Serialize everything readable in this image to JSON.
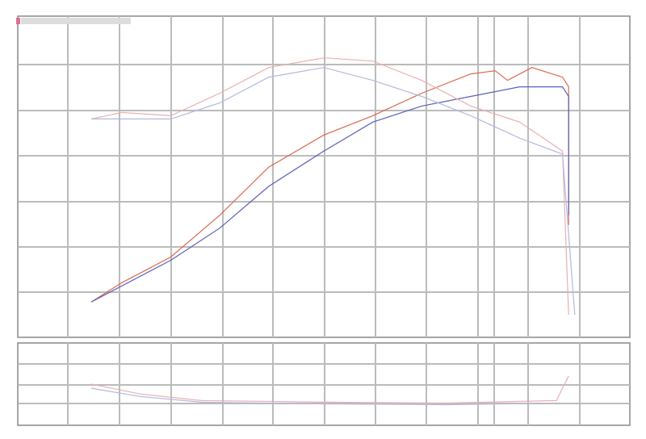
{
  "chart_data": [
    {
      "type": "line",
      "title": "",
      "xlabel": "",
      "ylabel": "",
      "xlim": [
        0,
        100
      ],
      "ylim": [
        0,
        100
      ],
      "grid": true,
      "legend": "top-left",
      "series": [
        {
          "color": "#d9694f",
          "x": [
            12,
            17,
            25,
            33,
            41,
            50,
            58,
            66,
            74,
            78,
            80,
            84,
            89,
            90,
            90
          ],
          "y": [
            11,
            17,
            25,
            38,
            53,
            63,
            69,
            76,
            82,
            83,
            80,
            84,
            81,
            78,
            35
          ]
        },
        {
          "color": "#5b5fb8",
          "x": [
            12,
            25,
            33,
            41,
            50,
            58,
            66,
            74,
            82,
            89,
            90,
            90
          ],
          "y": [
            11,
            24,
            34,
            47,
            58,
            67,
            72,
            75,
            78,
            78,
            75,
            38
          ]
        },
        {
          "color": "#e8b0b0",
          "x": [
            12,
            17,
            25,
            33,
            41,
            50,
            58,
            66,
            74,
            82,
            89,
            90
          ],
          "y": [
            68,
            70,
            69,
            76,
            84,
            87,
            86,
            80,
            72,
            67,
            58,
            7
          ]
        },
        {
          "color": "#b5b8dc",
          "x": [
            12,
            25,
            33,
            41,
            50,
            58,
            66,
            74,
            82,
            89,
            91
          ],
          "y": [
            68,
            68,
            73,
            81,
            84,
            80,
            75,
            69,
            62,
            57,
            7
          ]
        }
      ]
    },
    {
      "type": "line",
      "title": "",
      "xlim": [
        0,
        100
      ],
      "ylim": [
        0,
        100
      ],
      "grid": true,
      "series": [
        {
          "color": "#e8b0b0",
          "x": [
            12,
            20,
            30,
            50,
            70,
            88,
            90
          ],
          "y": [
            50,
            38,
            30,
            28,
            27,
            30,
            60
          ]
        },
        {
          "color": "#b5b8dc",
          "x": [
            12,
            20,
            30,
            50,
            70,
            88
          ],
          "y": [
            45,
            35,
            28,
            26,
            25,
            27
          ]
        }
      ]
    }
  ]
}
